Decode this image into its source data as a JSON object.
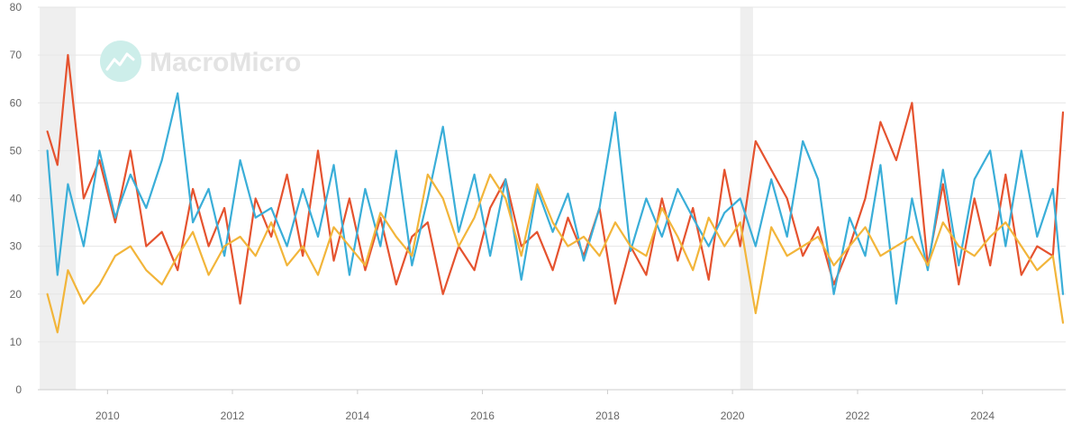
{
  "watermark": {
    "brand": "MacroMicro"
  },
  "colors": {
    "series_red": "#e5532f",
    "series_blue": "#3aaed8",
    "series_yellow": "#f2b53a",
    "recession_shade": "#efefef",
    "grid": "#e6e6e6",
    "axis_text": "#666666"
  },
  "chart_data": {
    "type": "line",
    "x_type": "date",
    "xlim": [
      "2008-11-20",
      "2025-05-01"
    ],
    "ylim": [
      0,
      80
    ],
    "yticks": [
      0,
      10,
      20,
      30,
      40,
      50,
      60,
      70,
      80
    ],
    "xticks": [
      "2010",
      "2012",
      "2014",
      "2016",
      "2018",
      "2020",
      "2022",
      "2024"
    ],
    "grid": true,
    "legend": "none",
    "title": "",
    "xlabel": "",
    "ylabel": "",
    "shaded_ranges": [
      {
        "start": "2008-12-01",
        "end": "2009-06-30"
      },
      {
        "start": "2020-02-15",
        "end": "2020-04-30"
      }
    ],
    "series": [
      {
        "color": "#e5532f",
        "x": [
          "2009-01",
          "2009-03",
          "2009-05",
          "2009-08",
          "2009-11",
          "2010-02",
          "2010-05",
          "2010-08",
          "2010-11",
          "2011-02",
          "2011-05",
          "2011-08",
          "2011-11",
          "2012-02",
          "2012-05",
          "2012-08",
          "2012-11",
          "2013-02",
          "2013-05",
          "2013-08",
          "2013-11",
          "2014-02",
          "2014-05",
          "2014-08",
          "2014-11",
          "2015-02",
          "2015-05",
          "2015-08",
          "2015-11",
          "2016-02",
          "2016-05",
          "2016-08",
          "2016-11",
          "2017-02",
          "2017-05",
          "2017-08",
          "2017-11",
          "2018-02",
          "2018-05",
          "2018-08",
          "2018-11",
          "2019-02",
          "2019-05",
          "2019-08",
          "2019-11",
          "2020-02",
          "2020-05",
          "2020-08",
          "2020-11",
          "2021-02",
          "2021-05",
          "2021-08",
          "2021-11",
          "2022-02",
          "2022-05",
          "2022-08",
          "2022-11",
          "2023-02",
          "2023-05",
          "2023-08",
          "2023-11",
          "2024-02",
          "2024-05",
          "2024-08",
          "2024-11",
          "2025-02",
          "2025-04"
        ],
        "y": [
          54,
          47,
          70,
          40,
          48,
          35,
          50,
          30,
          33,
          25,
          42,
          30,
          38,
          18,
          40,
          32,
          45,
          28,
          50,
          27,
          40,
          25,
          36,
          22,
          32,
          35,
          20,
          30,
          25,
          38,
          44,
          30,
          33,
          25,
          36,
          28,
          38,
          18,
          30,
          24,
          40,
          27,
          38,
          23,
          46,
          30,
          52,
          46,
          40,
          28,
          34,
          22,
          30,
          40,
          56,
          48,
          60,
          26,
          43,
          22,
          40,
          26,
          45,
          24,
          30,
          28,
          58
        ]
      },
      {
        "color": "#3aaed8",
        "x": [
          "2009-01",
          "2009-03",
          "2009-05",
          "2009-08",
          "2009-11",
          "2010-02",
          "2010-05",
          "2010-08",
          "2010-11",
          "2011-02",
          "2011-05",
          "2011-08",
          "2011-11",
          "2012-02",
          "2012-05",
          "2012-08",
          "2012-11",
          "2013-02",
          "2013-05",
          "2013-08",
          "2013-11",
          "2014-02",
          "2014-05",
          "2014-08",
          "2014-11",
          "2015-02",
          "2015-05",
          "2015-08",
          "2015-11",
          "2016-02",
          "2016-05",
          "2016-08",
          "2016-11",
          "2017-02",
          "2017-05",
          "2017-08",
          "2017-11",
          "2018-02",
          "2018-05",
          "2018-08",
          "2018-11",
          "2019-02",
          "2019-05",
          "2019-08",
          "2019-11",
          "2020-02",
          "2020-05",
          "2020-08",
          "2020-11",
          "2021-02",
          "2021-05",
          "2021-08",
          "2021-11",
          "2022-02",
          "2022-05",
          "2022-08",
          "2022-11",
          "2023-02",
          "2023-05",
          "2023-08",
          "2023-11",
          "2024-02",
          "2024-05",
          "2024-08",
          "2024-11",
          "2025-02",
          "2025-04"
        ],
        "y": [
          50,
          24,
          43,
          30,
          50,
          36,
          45,
          38,
          48,
          62,
          35,
          42,
          28,
          48,
          36,
          38,
          30,
          42,
          32,
          47,
          24,
          42,
          30,
          50,
          26,
          40,
          55,
          33,
          45,
          28,
          44,
          23,
          42,
          33,
          41,
          27,
          38,
          58,
          29,
          40,
          32,
          42,
          36,
          30,
          37,
          40,
          30,
          44,
          32,
          52,
          44,
          20,
          36,
          28,
          47,
          18,
          40,
          25,
          46,
          26,
          44,
          50,
          30,
          50,
          32,
          42,
          20
        ]
      },
      {
        "color": "#f2b53a",
        "x": [
          "2009-01",
          "2009-03",
          "2009-05",
          "2009-08",
          "2009-11",
          "2010-02",
          "2010-05",
          "2010-08",
          "2010-11",
          "2011-02",
          "2011-05",
          "2011-08",
          "2011-11",
          "2012-02",
          "2012-05",
          "2012-08",
          "2012-11",
          "2013-02",
          "2013-05",
          "2013-08",
          "2013-11",
          "2014-02",
          "2014-05",
          "2014-08",
          "2014-11",
          "2015-02",
          "2015-05",
          "2015-08",
          "2015-11",
          "2016-02",
          "2016-05",
          "2016-08",
          "2016-11",
          "2017-02",
          "2017-05",
          "2017-08",
          "2017-11",
          "2018-02",
          "2018-05",
          "2018-08",
          "2018-11",
          "2019-02",
          "2019-05",
          "2019-08",
          "2019-11",
          "2020-02",
          "2020-05",
          "2020-08",
          "2020-11",
          "2021-02",
          "2021-05",
          "2021-08",
          "2021-11",
          "2022-02",
          "2022-05",
          "2022-08",
          "2022-11",
          "2023-02",
          "2023-05",
          "2023-08",
          "2023-11",
          "2024-02",
          "2024-05",
          "2024-08",
          "2024-11",
          "2025-02",
          "2025-04"
        ],
        "y": [
          20,
          12,
          25,
          18,
          22,
          28,
          30,
          25,
          22,
          28,
          33,
          24,
          30,
          32,
          28,
          35,
          26,
          30,
          24,
          34,
          30,
          26,
          37,
          32,
          28,
          45,
          40,
          30,
          36,
          45,
          40,
          28,
          43,
          35,
          30,
          32,
          28,
          35,
          30,
          28,
          38,
          32,
          25,
          36,
          30,
          35,
          16,
          34,
          28,
          30,
          32,
          26,
          30,
          34,
          28,
          30,
          32,
          26,
          35,
          30,
          28,
          32,
          35,
          30,
          25,
          28,
          14
        ]
      }
    ]
  }
}
